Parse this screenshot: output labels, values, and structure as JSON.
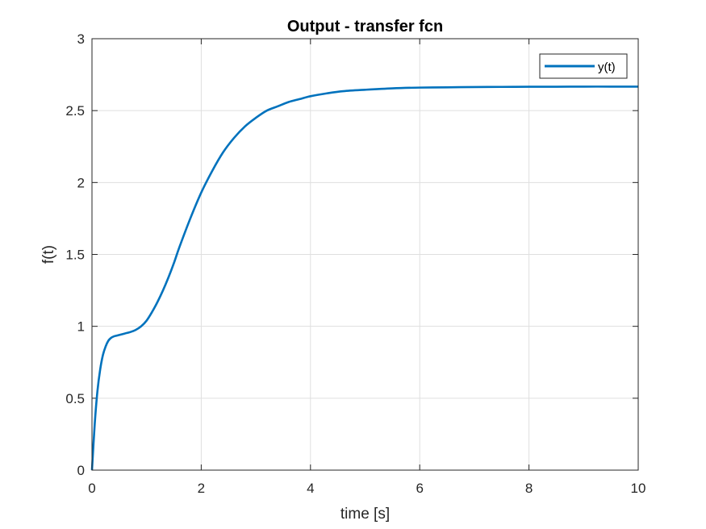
{
  "chart_data": {
    "type": "line",
    "title": "Output - transfer fcn",
    "xlabel": "time [s]",
    "ylabel": "f(t)",
    "xlim": [
      0,
      10
    ],
    "ylim": [
      0,
      3
    ],
    "xticks": [
      0,
      2,
      4,
      6,
      8,
      10
    ],
    "yticks": [
      0,
      0.5,
      1,
      1.5,
      2,
      2.5,
      3
    ],
    "xtick_labels": [
      "0",
      "2",
      "4",
      "6",
      "8",
      "10"
    ],
    "ytick_labels": [
      "0",
      "0.5",
      "1",
      "1.5",
      "2",
      "2.5",
      "3"
    ],
    "grid": true,
    "legend_position": "top-right",
    "series": [
      {
        "name": "y(t)",
        "color": "#0072BD",
        "x": [
          0,
          0.05,
          0.1,
          0.15,
          0.2,
          0.25,
          0.3,
          0.35,
          0.4,
          0.45,
          0.5,
          0.6,
          0.7,
          0.8,
          0.9,
          1.0,
          1.1,
          1.2,
          1.3,
          1.4,
          1.5,
          1.6,
          1.8,
          2.0,
          2.2,
          2.4,
          2.6,
          2.8,
          3.0,
          3.2,
          3.4,
          3.6,
          3.8,
          4.0,
          4.3,
          4.6,
          5.0,
          5.5,
          6.0,
          6.5,
          7.0,
          7.5,
          8.0,
          8.5,
          9.0,
          9.5,
          10.0
        ],
        "y": [
          0,
          0.32,
          0.55,
          0.7,
          0.8,
          0.86,
          0.9,
          0.92,
          0.93,
          0.935,
          0.94,
          0.95,
          0.96,
          0.975,
          1.0,
          1.04,
          1.1,
          1.17,
          1.25,
          1.34,
          1.44,
          1.55,
          1.75,
          1.93,
          2.08,
          2.21,
          2.31,
          2.39,
          2.45,
          2.5,
          2.53,
          2.56,
          2.58,
          2.6,
          2.62,
          2.635,
          2.645,
          2.655,
          2.66,
          2.662,
          2.664,
          2.665,
          2.666,
          2.666,
          2.667,
          2.667,
          2.667
        ]
      }
    ]
  }
}
